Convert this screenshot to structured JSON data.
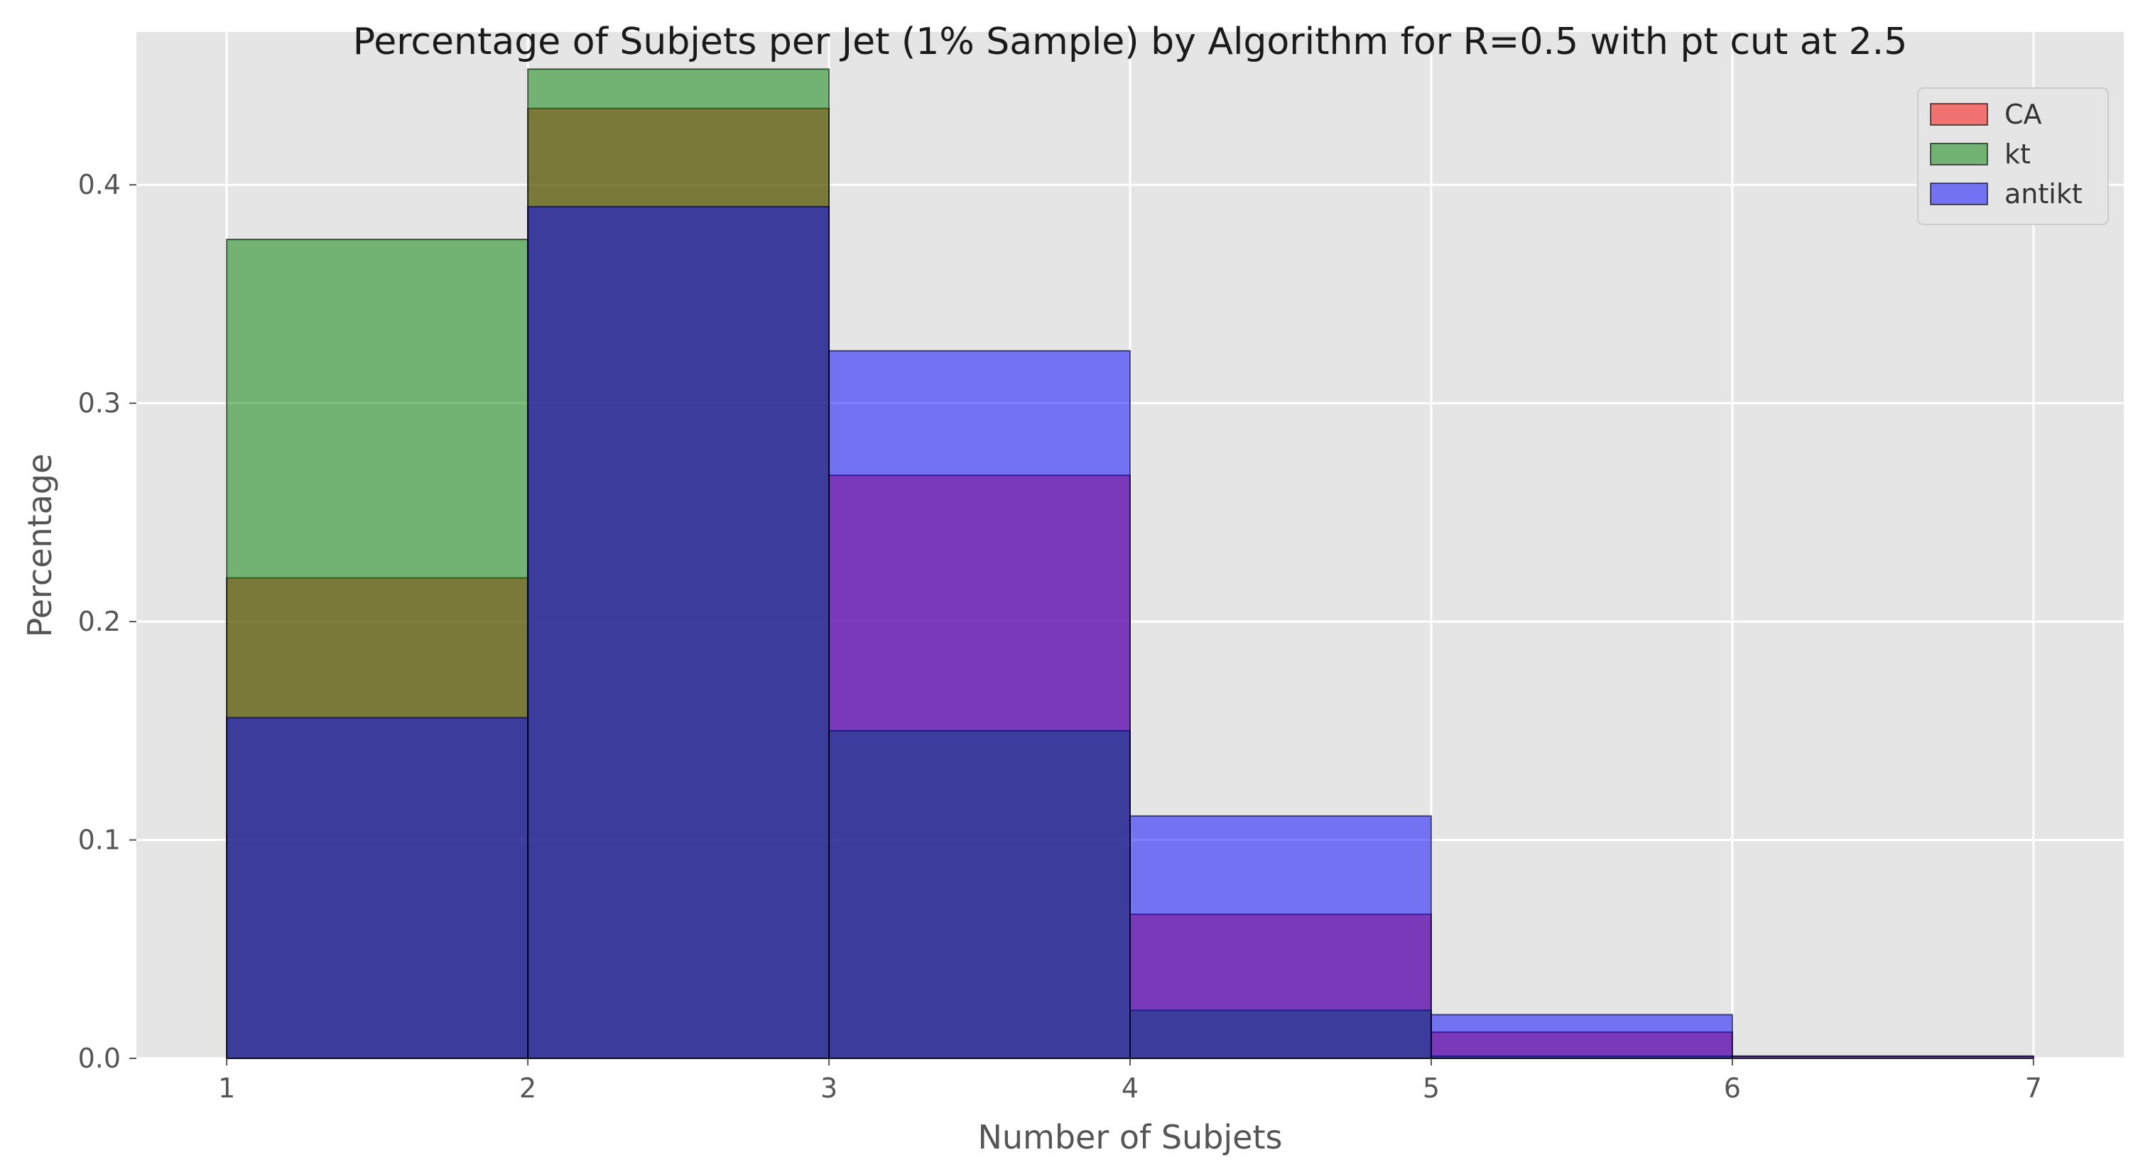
{
  "chart_data": {
    "type": "bar",
    "title": "Percentage of Subjets per Jet (1% Sample) by Algorithm for R=0.5 with pt cut at 2.5",
    "xlabel": "Number of Subjets",
    "ylabel": "Percentage",
    "xlim": [
      0.7,
      7.3
    ],
    "ylim": [
      0,
      0.47
    ],
    "xticks": [
      1,
      2,
      3,
      4,
      5,
      6,
      7
    ],
    "yticks": [
      0.0,
      0.1,
      0.2,
      0.3,
      0.4
    ],
    "ytick_labels": [
      "0.0",
      "0.1",
      "0.2",
      "0.3",
      "0.4"
    ],
    "bin_edges": [
      1,
      2,
      3,
      4,
      5,
      6,
      7
    ],
    "grid": true,
    "legend_position": "top-right",
    "background": "#e5e5e5",
    "series": [
      {
        "name": "CA",
        "color": "#ff0000",
        "alpha": 0.5,
        "values": [
          0.22,
          0.435,
          0.267,
          0.066,
          0.012,
          0.001
        ]
      },
      {
        "name": "kt",
        "color": "#008000",
        "alpha": 0.5,
        "values": [
          0.375,
          0.453,
          0.15,
          0.022,
          0.001,
          0.0
        ]
      },
      {
        "name": "antikt",
        "color": "#0000ff",
        "alpha": 0.5,
        "values": [
          0.156,
          0.39,
          0.324,
          0.111,
          0.02,
          0.001
        ]
      }
    ]
  }
}
